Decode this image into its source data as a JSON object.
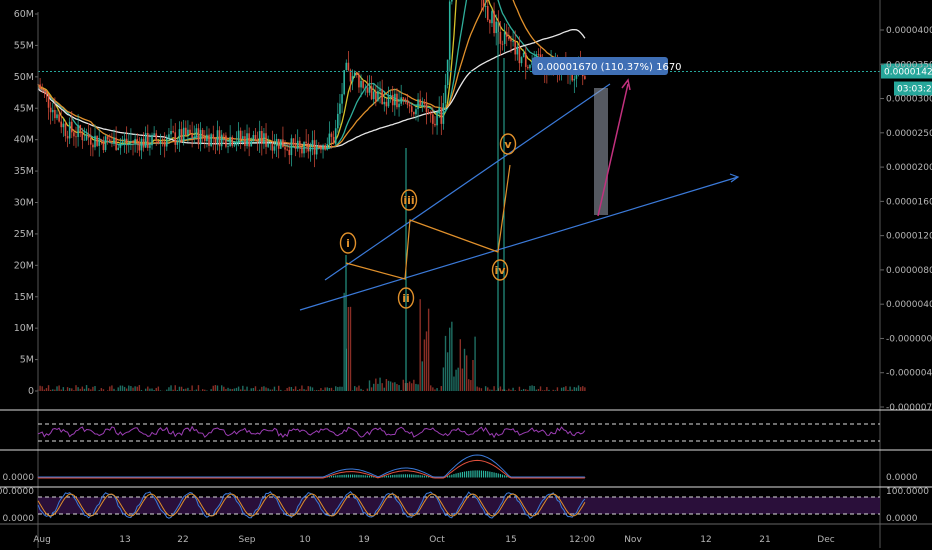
{
  "chart_data": {
    "type": "candlestick",
    "left_axis_labels": [
      "60M",
      "55M",
      "50M",
      "45M",
      "40M",
      "35M",
      "30M",
      "25M",
      "20M",
      "15M",
      "10M",
      "5M",
      "0"
    ],
    "right_axis_labels": [
      "0.00004000",
      "0.00003500",
      "0.00003000",
      "0.00002500",
      "0.00002000",
      "0.00001600",
      "0.00001200",
      "0.00000800",
      "0.00000400",
      "-0.00000000",
      "-0.00000400",
      "-0.00000750"
    ],
    "right_axis_range": [
      -7.5e-06,
      4.3e-06
    ],
    "x_tick_labels": [
      "Aug",
      "13",
      "22",
      "Sep",
      "10",
      "19",
      "Oct",
      "15",
      "12:00",
      "Nov",
      "12",
      "21",
      "Dec"
    ],
    "current_price_label": "0.00001420",
    "countdown_label": "03:03:20",
    "callout_label": "0.00001670 (110.37%) 1670",
    "wave_labels": [
      "i",
      "ii",
      "iii",
      "iv",
      "v"
    ],
    "price_path": [
      [
        0.0,
        2.6e-06
      ],
      [
        0.05,
        1.2e-06
      ],
      [
        0.12,
        8e-07
      ],
      [
        0.2,
        8e-07
      ],
      [
        0.28,
        1e-06
      ],
      [
        0.38,
        9e-07
      ],
      [
        0.44,
        8e-07
      ],
      [
        0.48,
        5e-07
      ],
      [
        0.52,
        8e-07
      ],
      [
        0.54,
        9e-07
      ],
      [
        0.56,
        3e-06
      ],
      [
        0.58,
        2.8e-06
      ],
      [
        0.62,
        2.2e-06
      ],
      [
        0.66,
        2e-06
      ],
      [
        0.68,
        1.9e-06
      ],
      [
        0.7,
        1.8e-06
      ],
      [
        0.72,
        1.6e-06
      ],
      [
        0.735,
        1.6e-06
      ],
      [
        0.745,
        3e-06
      ],
      [
        0.76,
        9e-06
      ],
      [
        0.78,
        7e-06
      ],
      [
        0.8,
        5.5e-06
      ],
      [
        0.84,
        4.2e-06
      ],
      [
        0.88,
        3.4e-06
      ],
      [
        0.92,
        3.2e-06
      ],
      [
        0.96,
        3e-06
      ],
      [
        1.0,
        3e-06
      ]
    ],
    "indicator_panel_2_labels": [
      "0.0000"
    ],
    "indicator_panel_3_labels": [
      "100.0000",
      "0.0000"
    ]
  }
}
